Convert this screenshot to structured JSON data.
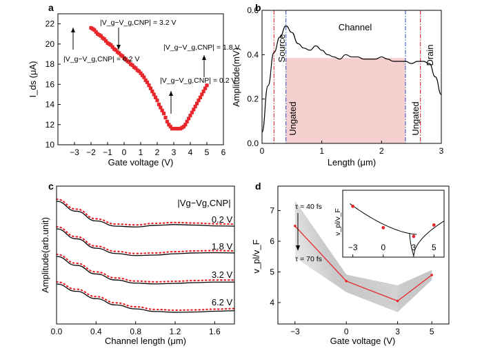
{
  "figure": {
    "panels": [
      "a",
      "b",
      "c",
      "d"
    ]
  },
  "chart_data": [
    {
      "panel": "a",
      "type": "scatter",
      "xlabel": "Gate voltage (V)",
      "ylabel": "I_ds (μA)",
      "xlim": [
        -4,
        6
      ],
      "ylim": [
        10,
        23
      ],
      "xticks": [
        "−3",
        "−2",
        "−1",
        "0",
        "1",
        "2",
        "3",
        "4",
        "5",
        "6"
      ],
      "yticks": [
        "10",
        "12",
        "14",
        "16",
        "18",
        "20",
        "22"
      ],
      "marker_color": "#e8262b",
      "series": [
        {
          "x": [
            -2.0,
            -1.9,
            -1.8,
            -1.7,
            -1.6,
            -1.5,
            -1.4,
            -1.3,
            -1.2,
            -1.1,
            -1.0,
            -0.9,
            -0.8,
            -0.7,
            -0.6,
            -0.5,
            -0.4,
            -0.3,
            -0.2,
            -0.1,
            0.0,
            0.1,
            0.2,
            0.3,
            0.4,
            0.5,
            0.6,
            0.7,
            0.8,
            0.9,
            1.0,
            1.1,
            1.2,
            1.3,
            1.4,
            1.5,
            1.6,
            1.7,
            1.8,
            1.9,
            2.0,
            2.1,
            2.2,
            2.3,
            2.4,
            2.5,
            2.6,
            2.7,
            2.8,
            2.9,
            3.0,
            3.1,
            3.2,
            3.3,
            3.4,
            3.5,
            3.6,
            3.7,
            3.8,
            3.9,
            4.0,
            4.1,
            4.2,
            4.3,
            4.4,
            4.5,
            4.6,
            4.7,
            4.8,
            4.9,
            5.0
          ],
          "y": [
            21.6,
            21.5,
            21.4,
            21.2,
            21.0,
            20.9,
            20.8,
            20.6,
            20.5,
            20.3,
            20.1,
            20.0,
            19.9,
            19.7,
            19.5,
            19.4,
            19.2,
            19.1,
            18.9,
            18.8,
            18.6,
            18.5,
            18.3,
            18.2,
            18.0,
            17.9,
            17.7,
            17.6,
            17.4,
            17.3,
            17.1,
            16.9,
            16.7,
            16.4,
            16.2,
            15.9,
            15.6,
            15.3,
            15.0,
            14.7,
            14.4,
            14.0,
            13.7,
            13.4,
            13.1,
            12.7,
            12.3,
            12.0,
            11.8,
            11.6,
            11.6,
            11.6,
            11.6,
            11.6,
            11.6,
            11.7,
            11.8,
            12.0,
            12.3,
            12.6,
            12.9,
            13.2,
            13.5,
            13.8,
            14.1,
            14.4,
            14.7,
            15.0,
            15.3,
            15.6,
            15.9
          ]
        }
      ],
      "annotations": [
        {
          "label": "|V_g−V_g,CNP| = 3.2 V",
          "x": 0.0,
          "y": 19.1
        },
        {
          "label": "|V_g−V_g,CNP| = 6.2 V",
          "x": -3.0,
          "y": 19.9
        },
        {
          "label": "|V_g−V_g,CNP| = 0.2 V",
          "x": 3.0,
          "y": 11.6
        },
        {
          "label": "|V_g−V_g,CNP| = 1.8 V",
          "x": 5.0,
          "y": 15.9
        }
      ]
    },
    {
      "panel": "b",
      "type": "line",
      "xlabel": "Length (μm)",
      "ylabel": "Amplitude(mV)",
      "xlim": [
        0,
        3
      ],
      "ylim": [
        0,
        0.6
      ],
      "xticks": [
        "0",
        "1",
        "2",
        "3"
      ],
      "yticks": [
        "0.0",
        "0.2",
        "0.4",
        "0.6"
      ],
      "region_labels": {
        "source": "Source",
        "drain": "Drain",
        "channel": "Channel",
        "ungated_left": "Ungated",
        "ungated_right": "Ungated"
      },
      "shaded_region": {
        "x": [
          0.4,
          2.4
        ],
        "y": [
          0,
          0.385
        ],
        "color": "#f6cfcf"
      },
      "vlines": [
        {
          "x": 0.2,
          "style": "dash-dot",
          "color": "#d8262b"
        },
        {
          "x": 0.4,
          "style": "dash-dot",
          "color": "#3a56c6"
        },
        {
          "x": 2.4,
          "style": "dash-dot",
          "color": "#3a56c6"
        },
        {
          "x": 2.65,
          "style": "dash-dot",
          "color": "#d8262b"
        }
      ],
      "series": [
        {
          "x": [
            0.0,
            0.1,
            0.2,
            0.3,
            0.4,
            0.5,
            0.6,
            0.7,
            0.8,
            0.9,
            1.0,
            1.1,
            1.2,
            1.3,
            1.4,
            1.5,
            1.6,
            1.7,
            1.8,
            1.9,
            2.0,
            2.1,
            2.2,
            2.3,
            2.4,
            2.5,
            2.6,
            2.7,
            2.8,
            2.9,
            3.0
          ],
          "y": [
            0.05,
            0.26,
            0.41,
            0.48,
            0.53,
            0.5,
            0.45,
            0.43,
            0.42,
            0.44,
            0.42,
            0.4,
            0.39,
            0.38,
            0.4,
            0.39,
            0.39,
            0.38,
            0.38,
            0.38,
            0.39,
            0.38,
            0.37,
            0.37,
            0.37,
            0.36,
            0.37,
            0.37,
            0.36,
            0.3,
            0.22
          ]
        }
      ]
    },
    {
      "panel": "c",
      "type": "line",
      "xlabel": "Channel length (μm)",
      "ylabel": "Amplitude(arb.unit)",
      "xlim": [
        0,
        1.8
      ],
      "xticks": [
        "0.0",
        "0.4",
        "0.8",
        "1.2",
        "1.6"
      ],
      "legend_title": "|Vg−Vg,CNP|",
      "series": [
        {
          "name": "0.2 V",
          "offset": 3,
          "x": [
            0,
            0.2,
            0.4,
            0.6,
            0.8,
            1.0,
            1.2,
            1.4,
            1.6,
            1.8
          ],
          "fit": [
            1.0,
            0.62,
            0.25,
            0.05,
            0.02,
            0.08,
            0.11,
            0.09,
            0.06,
            0.05
          ]
        },
        {
          "name": "1.8 V",
          "offset": 2,
          "x": [
            0,
            0.2,
            0.4,
            0.6,
            0.8,
            1.0,
            1.2,
            1.4,
            1.6,
            1.8
          ],
          "fit": [
            1.0,
            0.62,
            0.26,
            0.06,
            -0.02,
            0.0,
            0.05,
            0.08,
            0.09,
            0.08
          ]
        },
        {
          "name": "3.2 V",
          "offset": 1,
          "x": [
            0,
            0.2,
            0.4,
            0.6,
            0.8,
            1.0,
            1.2,
            1.4,
            1.6,
            1.8
          ],
          "fit": [
            1.0,
            0.66,
            0.33,
            0.1,
            -0.02,
            -0.05,
            -0.03,
            0.0,
            0.02,
            0.02
          ]
        },
        {
          "name": "6.2 V",
          "offset": 0,
          "x": [
            0,
            0.2,
            0.4,
            0.6,
            0.8,
            1.0,
            1.2,
            1.4,
            1.6,
            1.8
          ],
          "fit": [
            1.0,
            0.72,
            0.44,
            0.2,
            0.05,
            -0.05,
            -0.08,
            -0.07,
            -0.04,
            -0.02
          ]
        }
      ],
      "fit_color": "#000000",
      "data_color": "#e8262b"
    },
    {
      "panel": "d",
      "type": "line",
      "xlabel": "Gate voltage (V)",
      "ylabel": "v_pl/v_F",
      "xlim": [
        -4,
        6
      ],
      "ylim": [
        3.3,
        7.8
      ],
      "xticks": [
        "−3",
        "0",
        "3",
        "5"
      ],
      "yticks": [
        "4",
        "5",
        "6",
        "7"
      ],
      "x": [
        -3,
        0,
        3,
        5
      ],
      "highlight": {
        "color": "#e8262b",
        "values": [
          6.5,
          4.7,
          4.05,
          4.9
        ]
      },
      "band": {
        "color": "#c8c8c8",
        "upper": [
          7.3,
          4.9,
          4.55,
          5.05
        ],
        "lower": [
          5.5,
          4.35,
          3.7,
          4.75
        ],
        "count": 31
      },
      "tau_labels": {
        "top": "τ = 40 fs",
        "bottom": "τ = 70 fs"
      },
      "inset": {
        "ylabel": "v_pl/v_F",
        "xticks": [
          "−3",
          "0",
          "3",
          "5"
        ],
        "points": [
          {
            "x": -3,
            "y": 6.3
          },
          {
            "x": 0,
            "y": 4.7
          },
          {
            "x": 3,
            "y": 4.05
          },
          {
            "x": 5,
            "y": 4.9
          }
        ]
      }
    }
  ]
}
